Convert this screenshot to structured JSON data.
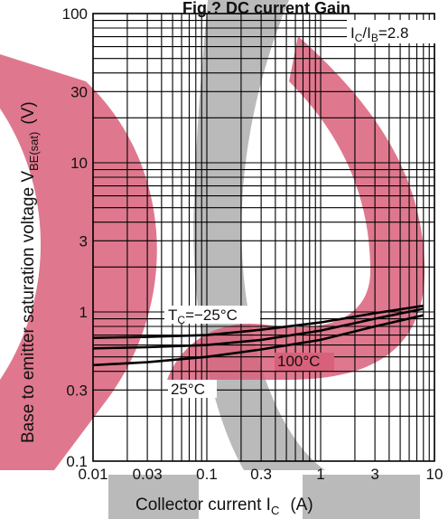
{
  "watermark_colors": {
    "pink": "#d9607a",
    "gray": "#b3b3b3"
  },
  "chart_data": {
    "type": "line",
    "title": "Fig.? DC current Gain",
    "xlabel": "Collector current   I",
    "xlabel_sub": "C",
    "xlabel_unit": "(A)",
    "ylabel": "Base to emitter saturation voltage  V",
    "ylabel_sub": "BE(sat)",
    "ylabel_unit": "(V)",
    "xscale": "log",
    "yscale": "log",
    "xlim": [
      0.01,
      10
    ],
    "ylim": [
      0.1,
      100
    ],
    "x_ticks": [
      0.01,
      0.03,
      0.1,
      0.3,
      1,
      3,
      10
    ],
    "x_tick_labels": [
      "0.01",
      "0.03",
      "0.1",
      "0.3",
      "1",
      "3",
      "10"
    ],
    "y_ticks": [
      0.1,
      0.3,
      1,
      3,
      10,
      30,
      100
    ],
    "y_tick_labels": [
      "0.1",
      "0.3",
      "1",
      "3",
      "10",
      "30",
      "100"
    ],
    "grid": true,
    "condition": {
      "main": "I",
      "sub1": "C",
      "slash": "/I",
      "sub2": "B",
      "rest": "=2.8"
    },
    "annotations": [
      {
        "main": "T",
        "sub": "C",
        "rest": "=−25°C"
      },
      {
        "main": "100°C"
      },
      {
        "main": "25°C"
      }
    ],
    "series": [
      {
        "x": [
          0.01,
          0.03,
          0.1,
          0.3,
          1,
          3,
          8
        ],
        "y": [
          0.67,
          0.68,
          0.7,
          0.76,
          0.85,
          0.98,
          1.1
        ]
      },
      {
        "x": [
          0.01,
          0.03,
          0.1,
          0.3,
          1,
          3,
          8
        ],
        "y": [
          0.57,
          0.58,
          0.6,
          0.65,
          0.75,
          0.9,
          1.05
        ]
      },
      {
        "x": [
          0.01,
          0.03,
          0.1,
          0.3,
          1,
          3,
          8
        ],
        "y": [
          0.44,
          0.46,
          0.5,
          0.56,
          0.65,
          0.8,
          0.95
        ]
      }
    ]
  }
}
